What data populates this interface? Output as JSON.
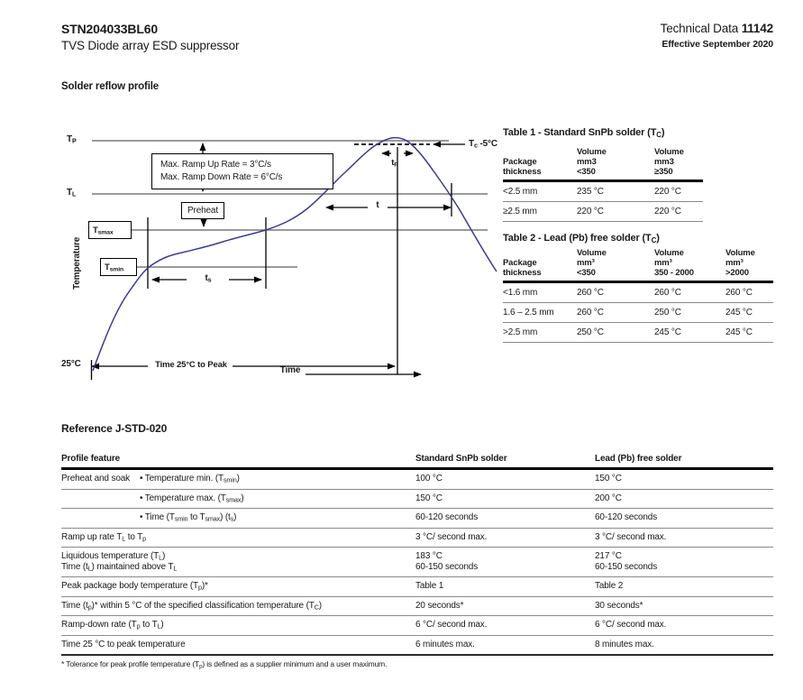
{
  "header": {
    "part_number": "STN204033BL60",
    "subtitle": "TVS Diode array ESD suppressor",
    "doc_type": "Technical Data",
    "doc_number": "11142",
    "effective": "Effective September 2020"
  },
  "section_title": "Solder reflow profile",
  "colors": {
    "curve": "#3b3b94",
    "ref_line": "#7a7a7a"
  },
  "chart": {
    "y_axis_label": "Temperature",
    "x_axis_label": "Time",
    "labels": {
      "tp": "T~P~",
      "tl": "T~L~",
      "tsmax": "T~smax~",
      "tsmin": "T~smin~",
      "ramp_line1": "Max. Ramp Up Rate = 3°C/s",
      "ramp_line2": "Max. Ramp Down Rate = 6°C/s",
      "preheat": "Preheat",
      "ts": "t~s~",
      "t": "t",
      "tp_time": "t~P~",
      "tc_minus5": "T~c~ -5°C",
      "start_temp": "25°C",
      "time_to_peak": "Time 25°C to Peak"
    }
  },
  "table1": {
    "title": "Table 1 - Standard SnPb solder (T~C~)",
    "col_headers": [
      "Package\nthickness",
      "Volume\nmm3\n<350",
      "Volume\nmm3\n≥350"
    ],
    "rows": [
      [
        "<2.5 mm",
        "235 °C",
        "220 °C"
      ],
      [
        "≥2.5 mm",
        "220 °C",
        "220 °C"
      ]
    ]
  },
  "table2": {
    "title": "Table 2 - Lead (Pb) free solder (T~C~)",
    "col_headers": [
      "Package\nthickness",
      "Volume\nmm³\n<350",
      "Volume\nmm³\n350 - 2000",
      "Volume\nmm³\n>2000"
    ],
    "rows": [
      [
        "<1.6 mm",
        "260 °C",
        "260 °C",
        "260 °C"
      ],
      [
        "1.6 – 2.5 mm",
        "260 °C",
        "250 °C",
        "245 °C"
      ],
      [
        ">2.5 mm",
        "250 °C",
        "245 °C",
        "245 °C"
      ]
    ]
  },
  "reference": {
    "title": "Reference J-STD-020",
    "col_headers": [
      "Profile feature",
      "Standard SnPb solder",
      "Lead (Pb) free solder"
    ],
    "rows": [
      {
        "group": "Preheat and soak",
        "feature": "• Temperature min. (T~smin~)",
        "snpb": "100 °C",
        "pbfree": "150 °C"
      },
      {
        "group": "",
        "feature": "• Temperature max. (T~smax~)",
        "snpb": "150 °C",
        "pbfree": "200 °C"
      },
      {
        "group": "",
        "feature": "• Time (T~smin~ to T~smax~) (t~s~)",
        "snpb": "60-120 seconds",
        "pbfree": "60-120 seconds"
      },
      {
        "feature": "Ramp up rate T~L~ to T~p~",
        "snpb": "3 °C/ second max.",
        "pbfree": "3 °C/ second max."
      },
      {
        "feature": "Liquidous temperature (T~L~)\nTime (t~L~) maintained above T~L~",
        "snpb": "183 °C\n60-150 seconds",
        "pbfree": "217 °C\n60-150 seconds"
      },
      {
        "feature": "Peak package body temperature (T~p~)*",
        "snpb": "Table 1",
        "pbfree": "Table 2"
      },
      {
        "feature": "Time (t~p~)* within 5 °C of the specified classification temperature (T~C~)",
        "snpb": "20 seconds*",
        "pbfree": "30 seconds*"
      },
      {
        "feature": "Ramp-down rate (T~p~ to T~L~)",
        "snpb": "6 °C/ second max.",
        "pbfree": "6 °C/ second max."
      },
      {
        "feature": "Time 25 °C to peak temperature",
        "snpb": "6 minutes max.",
        "pbfree": "8 minutes max."
      }
    ],
    "footnote": "* Tolerance for peak profile temperature (T~p~) is defined as a supplier minimum and a user maximum."
  }
}
